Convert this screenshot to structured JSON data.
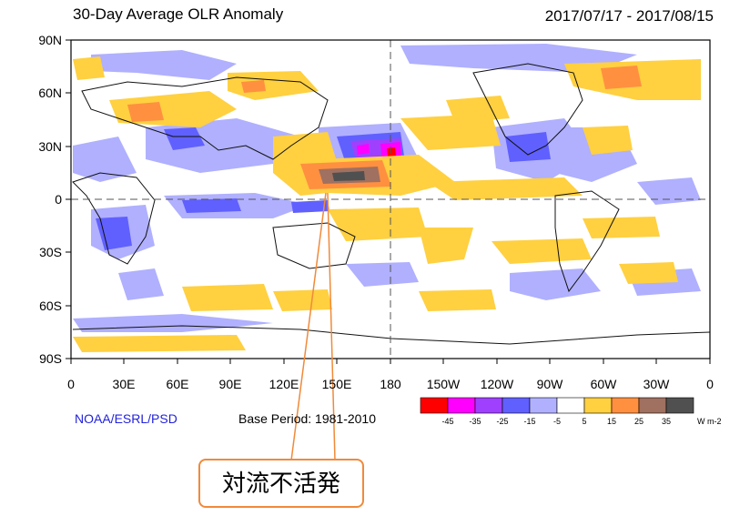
{
  "header": {
    "title": "30-Day Average OLR Anomaly",
    "period": "2017/07/17 - 2017/08/15"
  },
  "axes": {
    "lat_labels": [
      "90N",
      "60N",
      "30N",
      "0",
      "30S",
      "60S",
      "90S"
    ],
    "lon_labels": [
      "0",
      "30E",
      "60E",
      "90E",
      "120E",
      "150E",
      "180",
      "150W",
      "120W",
      "90W",
      "60W",
      "30W",
      "0"
    ]
  },
  "footer": {
    "credit": "NOAA/ESRL/PSD",
    "base_period": "Base Period: 1981-2010"
  },
  "colorbar": {
    "colors": [
      "#ff0000",
      "#ff00ff",
      "#a040ff",
      "#6060ff",
      "#b0b0ff",
      "#ffffff",
      "#ffd040",
      "#ff9040",
      "#a07060",
      "#505050"
    ],
    "ticks": [
      "-45",
      "-35",
      "-25",
      "-15",
      "-5",
      "5",
      "15",
      "25",
      "35"
    ],
    "unit": "W m-2"
  },
  "annotation": {
    "text": "対流不活発",
    "border_color": "#f08a3a"
  }
}
